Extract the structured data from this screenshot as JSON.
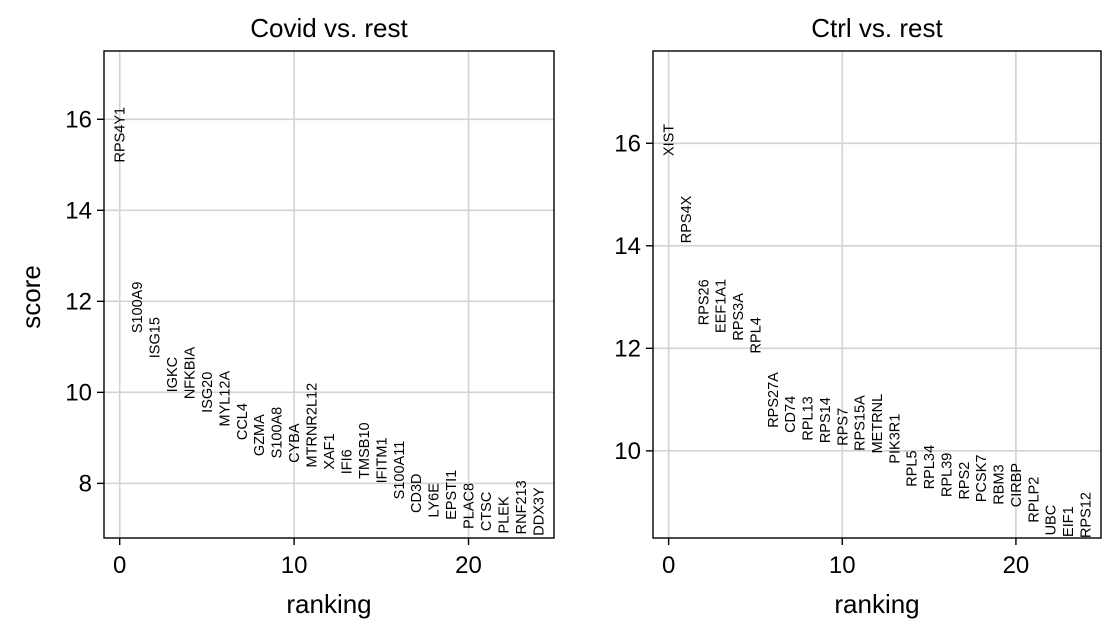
{
  "figure": {
    "ylabel": "score"
  },
  "chart_data": [
    {
      "type": "scatter",
      "title": "Covid vs. rest",
      "xlabel": "ranking",
      "ylabel": "score",
      "xlim": [
        -0.9,
        24.9
      ],
      "ylim": [
        6.8,
        17.5
      ],
      "xticks": [
        0,
        10,
        20
      ],
      "yticks": [
        8,
        10,
        12,
        14,
        16
      ],
      "grid": true,
      "points": [
        {
          "x": 0,
          "y": 15.05,
          "label": "RPS4Y1"
        },
        {
          "x": 1,
          "y": 11.3,
          "label": "S100A9"
        },
        {
          "x": 2,
          "y": 10.75,
          "label": "ISG15"
        },
        {
          "x": 3,
          "y": 10.0,
          "label": "IGKC"
        },
        {
          "x": 4,
          "y": 9.85,
          "label": "NFKBIA"
        },
        {
          "x": 5,
          "y": 9.55,
          "label": "ISG20"
        },
        {
          "x": 6,
          "y": 9.25,
          "label": "MYL12A"
        },
        {
          "x": 7,
          "y": 8.95,
          "label": "CCL4"
        },
        {
          "x": 8,
          "y": 8.6,
          "label": "GZMA"
        },
        {
          "x": 9,
          "y": 8.55,
          "label": "S100A8"
        },
        {
          "x": 10,
          "y": 8.45,
          "label": "CYBA"
        },
        {
          "x": 11,
          "y": 8.35,
          "label": "MTRNR2L12"
        },
        {
          "x": 12,
          "y": 8.3,
          "label": "XAF1"
        },
        {
          "x": 13,
          "y": 8.2,
          "label": "IFI6"
        },
        {
          "x": 14,
          "y": 8.1,
          "label": "TMSB10"
        },
        {
          "x": 15,
          "y": 8.0,
          "label": "IFITM1"
        },
        {
          "x": 16,
          "y": 7.65,
          "label": "S100A11"
        },
        {
          "x": 17,
          "y": 7.35,
          "label": "CD3D"
        },
        {
          "x": 18,
          "y": 7.25,
          "label": "LY6E"
        },
        {
          "x": 19,
          "y": 7.2,
          "label": "EPSTI1"
        },
        {
          "x": 20,
          "y": 7.0,
          "label": "PLAC8"
        },
        {
          "x": 21,
          "y": 6.95,
          "label": "CTSC"
        },
        {
          "x": 22,
          "y": 6.9,
          "label": "PLEK"
        },
        {
          "x": 23,
          "y": 6.88,
          "label": "RNF213"
        },
        {
          "x": 24,
          "y": 6.85,
          "label": "DDX3Y"
        }
      ]
    },
    {
      "type": "scatter",
      "title": "Ctrl vs. rest",
      "xlabel": "ranking",
      "ylabel": "",
      "xlim": [
        -0.9,
        24.9
      ],
      "ylim": [
        8.3,
        17.8
      ],
      "xticks": [
        0,
        10,
        20
      ],
      "yticks": [
        10,
        12,
        14,
        16
      ],
      "grid": true,
      "points": [
        {
          "x": 0,
          "y": 15.75,
          "label": "XIST"
        },
        {
          "x": 1,
          "y": 14.05,
          "label": "RPS4X"
        },
        {
          "x": 2,
          "y": 12.45,
          "label": "RPS26"
        },
        {
          "x": 3,
          "y": 12.3,
          "label": "EEF1A1"
        },
        {
          "x": 4,
          "y": 12.15,
          "label": "RPS3A"
        },
        {
          "x": 5,
          "y": 11.9,
          "label": "RPL4"
        },
        {
          "x": 6,
          "y": 10.45,
          "label": "RPS27A"
        },
        {
          "x": 7,
          "y": 10.35,
          "label": "CD74"
        },
        {
          "x": 8,
          "y": 10.2,
          "label": "RPL13"
        },
        {
          "x": 9,
          "y": 10.15,
          "label": "RPS14"
        },
        {
          "x": 10,
          "y": 10.1,
          "label": "RPS7"
        },
        {
          "x": 11,
          "y": 10.0,
          "label": "RPS15A"
        },
        {
          "x": 12,
          "y": 9.95,
          "label": "METRNL"
        },
        {
          "x": 13,
          "y": 9.75,
          "label": "PIK3R1"
        },
        {
          "x": 14,
          "y": 9.3,
          "label": "RPL5"
        },
        {
          "x": 15,
          "y": 9.25,
          "label": "RPL34"
        },
        {
          "x": 16,
          "y": 9.1,
          "label": "RPL39"
        },
        {
          "x": 17,
          "y": 9.05,
          "label": "RPS2"
        },
        {
          "x": 18,
          "y": 9.0,
          "label": "PCSK7"
        },
        {
          "x": 19,
          "y": 8.95,
          "label": "RBM3"
        },
        {
          "x": 20,
          "y": 8.9,
          "label": "CIRBP"
        },
        {
          "x": 21,
          "y": 8.6,
          "label": "RPLP2"
        },
        {
          "x": 22,
          "y": 8.35,
          "label": "UBC"
        },
        {
          "x": 23,
          "y": 8.32,
          "label": "EIF1"
        },
        {
          "x": 24,
          "y": 8.3,
          "label": "RPS12"
        }
      ]
    }
  ]
}
